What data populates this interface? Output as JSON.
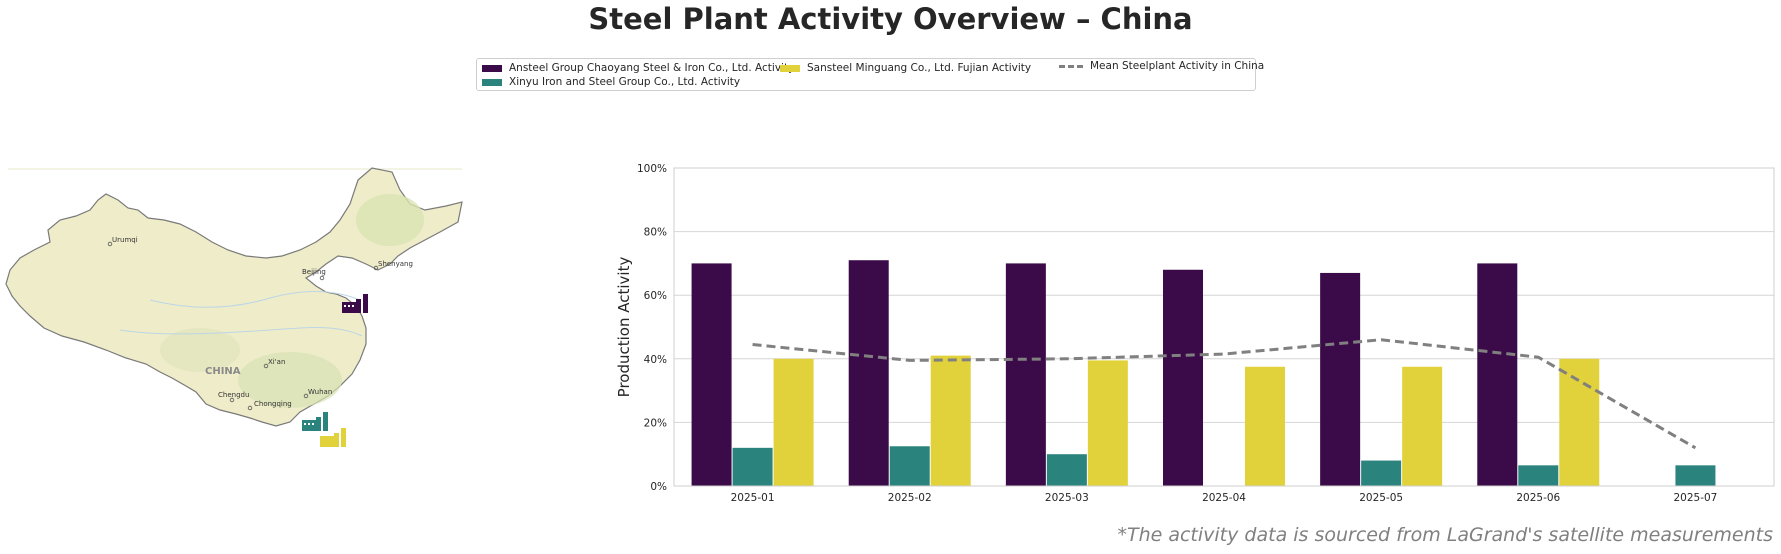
{
  "title": "Steel Plant Activity Overview – China",
  "footnote": "*The activity data is sourced from LaGrand's satellite measurements",
  "legend": [
    {
      "label": "Ansteel Group Chaoyang Steel & Iron Co., Ltd. Activity",
      "color": "#3b0a48",
      "kind": "bar"
    },
    {
      "label": "Xinyu Iron and Steel Group Co., Ltd. Activity",
      "color": "#2b837e",
      "kind": "bar"
    },
    {
      "label": "Sansteel Minguang Co., Ltd. Fujian Activity",
      "color": "#e1d23c",
      "kind": "bar"
    },
    {
      "label": "Mean Steelplant Activity in China",
      "color": "#808080",
      "kind": "dashed-line"
    }
  ],
  "map": {
    "country_label": "CHINA",
    "cities": [
      "Urumqi",
      "Beijing",
      "Shenyang",
      "Xi'an",
      "Chengdu",
      "Chongqing",
      "Wuhan"
    ],
    "markers": [
      {
        "name": "Ansteel Group Chaoyang Steel & Iron Co., Ltd.",
        "color": "#3b0a48",
        "icon": "factory-icon"
      },
      {
        "name": "Xinyu Iron and Steel Group Co., Ltd.",
        "color": "#2b837e",
        "icon": "factory-icon"
      },
      {
        "name": "Sansteel Minguang Co., Ltd. Fujian",
        "color": "#e1d23c",
        "icon": "factory-icon"
      }
    ]
  },
  "chart_data": {
    "type": "bar",
    "title": "",
    "xlabel": "",
    "ylabel": "Production Activity",
    "ylim": [
      0,
      100
    ],
    "yticks": [
      "0%",
      "20%",
      "40%",
      "60%",
      "80%",
      "100%"
    ],
    "grid": "horizontal",
    "legend_position": "top-center",
    "categories": [
      "2025-01",
      "2025-02",
      "2025-03",
      "2025-04",
      "2025-05",
      "2025-06",
      "2025-07"
    ],
    "series": [
      {
        "name": "Ansteel Group Chaoyang Steel & Iron Co., Ltd. Activity",
        "color": "#3b0a48",
        "values": [
          70,
          71,
          70,
          68,
          67,
          70,
          null
        ]
      },
      {
        "name": "Xinyu Iron and Steel Group Co., Ltd. Activity",
        "color": "#2b837e",
        "values": [
          12,
          12.5,
          10,
          null,
          8,
          6.5,
          6.5
        ]
      },
      {
        "name": "Sansteel Minguang Co., Ltd. Fujian Activity",
        "color": "#e1d23c",
        "values": [
          40,
          41,
          39.5,
          37.5,
          37.5,
          40,
          null
        ]
      }
    ],
    "mean_line": {
      "name": "Mean Steelplant Activity in China",
      "color": "#808080",
      "values": [
        44.5,
        39.5,
        40,
        41.5,
        46,
        40.5,
        12
      ]
    }
  }
}
